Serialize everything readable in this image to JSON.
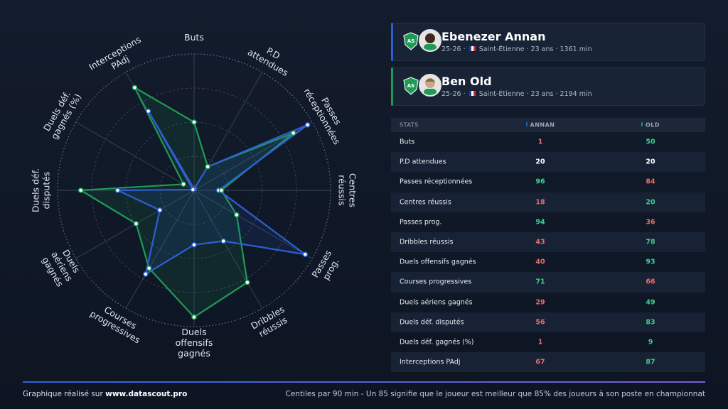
{
  "chart_data": {
    "type": "radar",
    "categories": [
      "Buts",
      "P.D attendues",
      "Passes réceptionnées",
      "Centres réussis",
      "Passes prog.",
      "Dribbles réussis",
      "Duels offensifs gagnés",
      "Courses progressives",
      "Duels aériens gagnés",
      "Duels déf. disputés",
      "Duels déf. gagnés (%)",
      "Interceptions PAdj"
    ],
    "series": [
      {
        "name": "Ebenezer Annan",
        "color": "#2d5fd3",
        "values": [
          1,
          20,
          96,
          18,
          94,
          43,
          40,
          71,
          29,
          56,
          1,
          67
        ]
      },
      {
        "name": "Ben Old",
        "color": "#1f9a57",
        "values": [
          50,
          20,
          84,
          20,
          36,
          78,
          93,
          66,
          49,
          83,
          9,
          87
        ]
      }
    ],
    "rlim": [
      0,
      100
    ],
    "rticks": [
      25,
      50,
      75,
      100
    ],
    "grid": true
  },
  "players": [
    {
      "season": "25-26",
      "club": "Saint-Étienne",
      "age": "23 ans",
      "minutes": "1361 min"
    },
    {
      "season": "25-26",
      "club": "Saint-Étienne",
      "age": "23 ans",
      "minutes": "2194 min"
    }
  ],
  "table": {
    "headers": [
      "STATS",
      "ANNAN",
      "OLD"
    ]
  },
  "footer": {
    "credit": "Graphique réalisé sur",
    "site": "www.datascout.pro",
    "note": "Centiles par 90 min - Un 85 signifie que le joueur est meilleur que 85% des joueurs à son poste en championnat"
  }
}
